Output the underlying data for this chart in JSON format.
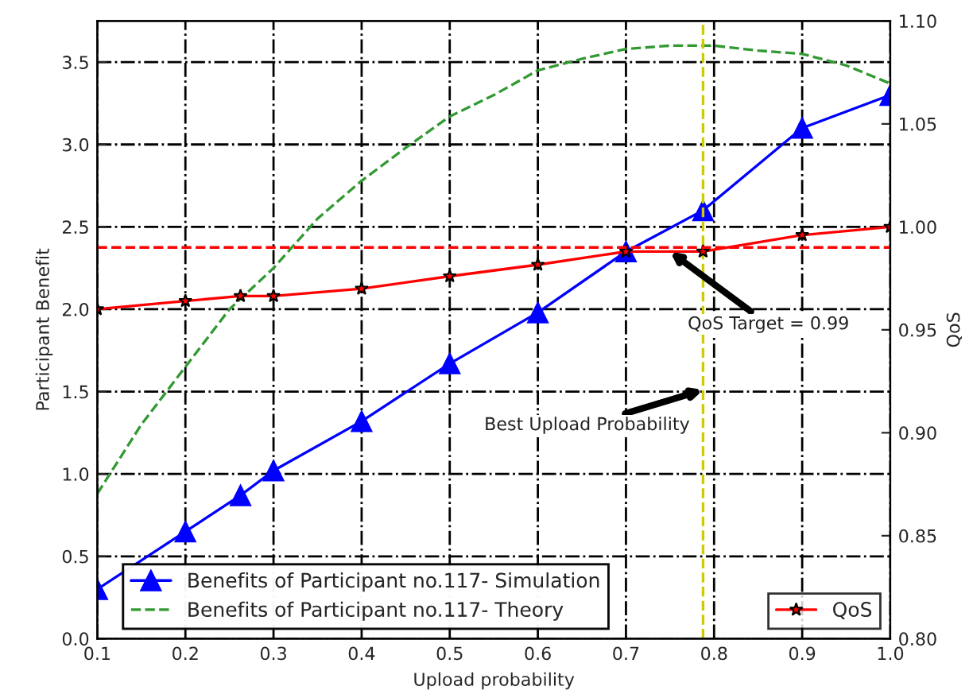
{
  "chart_data": {
    "type": "line",
    "xlabel": "Upload probability",
    "ylabel": "Participant Benefit",
    "y2label": "QoS",
    "xlim": [
      0.1,
      1.0
    ],
    "xticks": [
      0.1,
      0.2,
      0.3,
      0.4,
      0.5,
      0.6,
      0.7,
      0.8,
      0.9,
      {
        "value": 1.0,
        "label": "1.0"
      }
    ],
    "ylim": [
      0,
      3.75
    ],
    "yticks": [
      {
        "value": 0,
        "label": "0.0"
      },
      0.5,
      {
        "value": 1,
        "label": "1.0"
      },
      1.5,
      {
        "value": 2,
        "label": "2.0"
      },
      2.5,
      {
        "value": 3,
        "label": "3.0"
      },
      3.5
    ],
    "y2lim": [
      0.8,
      1.1
    ],
    "y2ticks": [
      {
        "value": 0.8,
        "label": "0.80"
      },
      0.85,
      {
        "value": 0.9,
        "label": "0.90"
      },
      0.95,
      {
        "value": 1.0,
        "label": "1.00"
      },
      1.05,
      {
        "value": 1.1,
        "label": "1.10"
      }
    ],
    "grid": true,
    "legend": "bottom",
    "series": [
      {
        "name": "Benefits of Participant no.117- Simulation",
        "color": "#0000ff",
        "marker": "triangle",
        "line_style": "solid",
        "x": [
          0.1,
          0.2,
          0.2625,
          0.3,
          0.4,
          0.5,
          0.6,
          0.7,
          0.7875,
          0.9,
          1.0
        ],
        "values": [
          0.3,
          0.65,
          0.87,
          1.02,
          1.32,
          1.67,
          1.98,
          2.35,
          2.6,
          3.1,
          3.3
        ]
      },
      {
        "name": "Benefits of Participant no.117- Theory",
        "color": "#339933",
        "marker": "none",
        "line_style": "dashed",
        "x": [
          0.1,
          0.15,
          0.2,
          0.25,
          0.3,
          0.35,
          0.4,
          0.45,
          0.5,
          0.55,
          0.6,
          0.65,
          0.7,
          0.75,
          0.8,
          0.85,
          0.9,
          0.95,
          1.0
        ],
        "values": [
          0.88,
          1.3,
          1.65,
          2.0,
          2.25,
          2.55,
          2.78,
          2.98,
          3.17,
          3.3,
          3.45,
          3.52,
          3.58,
          3.6,
          3.6,
          3.57,
          3.55,
          3.48,
          3.37
        ]
      },
      {
        "name": "QoS",
        "color": "#ff0000",
        "marker": "star",
        "line_style": "solid",
        "axis": "y2",
        "x": [
          0.1,
          0.2,
          0.2625,
          0.3,
          0.4,
          0.5,
          0.6,
          0.7,
          0.7875,
          0.9,
          1.0
        ],
        "values": [
          0.96,
          0.964,
          0.9664,
          0.9664,
          0.97,
          0.976,
          0.9816,
          0.988,
          0.988,
          0.996,
          1.0
        ]
      }
    ],
    "ref_lines": [
      {
        "axis": "y2",
        "value": 0.99,
        "color": "#ff0000",
        "line_style": "dashed"
      },
      {
        "axis": "x",
        "value": 0.7875,
        "color": "#cccc00",
        "line_style": "dashed"
      }
    ],
    "annotations": [
      {
        "text": "QoS Target = 0.99",
        "x": 0.75,
        "y": 2.35
      },
      {
        "text": "Best Upload Probability",
        "x": 0.7875,
        "y": 1.51
      }
    ]
  }
}
